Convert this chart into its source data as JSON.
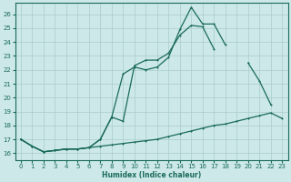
{
  "xlabel": "Humidex (Indice chaleur)",
  "bg_color": "#cce8e8",
  "grid_color": "#aacccc",
  "line_color": "#1a6b5a",
  "xlim": [
    -0.5,
    23.5
  ],
  "ylim": [
    15.5,
    26.8
  ],
  "xticks": [
    0,
    1,
    2,
    3,
    4,
    5,
    6,
    7,
    8,
    9,
    10,
    11,
    12,
    13,
    14,
    15,
    16,
    17,
    18,
    19,
    20,
    21,
    22,
    23
  ],
  "yticks": [
    16,
    17,
    18,
    19,
    20,
    21,
    22,
    23,
    24,
    25,
    26
  ],
  "line1_x": [
    0,
    1,
    2,
    3,
    4,
    5,
    6,
    7,
    8,
    9,
    10,
    11,
    12,
    13,
    14,
    15,
    16,
    17,
    18,
    19,
    20,
    21,
    22,
    23
  ],
  "line1_y": [
    17.0,
    16.5,
    16.1,
    16.2,
    16.3,
    16.3,
    16.4,
    16.5,
    16.6,
    16.7,
    16.8,
    16.9,
    17.0,
    17.2,
    17.4,
    17.6,
    17.8,
    18.0,
    18.1,
    18.3,
    18.5,
    18.7,
    18.9,
    18.5
  ],
  "line2_x": [
    0,
    1,
    2,
    3,
    4,
    5,
    6,
    7,
    8,
    9,
    10,
    11,
    12,
    13,
    14,
    15,
    16,
    17,
    18,
    19,
    20,
    21,
    22
  ],
  "line2_y": [
    17.0,
    16.5,
    16.1,
    16.2,
    16.3,
    16.3,
    16.4,
    17.0,
    18.6,
    18.3,
    22.3,
    22.7,
    22.7,
    23.2,
    24.5,
    25.2,
    25.1,
    23.5,
    null,
    null,
    22.5,
    21.2,
    19.5
  ],
  "line3_x": [
    0,
    1,
    2,
    3,
    4,
    5,
    6,
    7,
    8,
    9,
    10,
    11,
    12,
    13,
    14,
    15,
    16,
    17,
    18
  ],
  "line3_y": [
    17.0,
    16.5,
    16.1,
    16.2,
    16.3,
    16.3,
    16.4,
    17.0,
    18.6,
    21.7,
    22.2,
    22.0,
    22.2,
    22.9,
    24.9,
    26.5,
    25.3,
    25.3,
    23.8
  ]
}
